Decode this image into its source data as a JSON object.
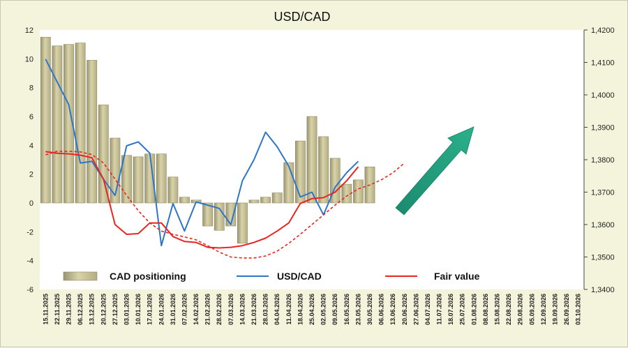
{
  "chart_data": {
    "type": "bar+line",
    "title": "USD/CAD",
    "x_labels": [
      "15.11.2025",
      "22.11.2025",
      "29.11.2025",
      "06.12.2025",
      "13.12.2025",
      "20.12.2025",
      "27.12.2025",
      "03.01.2026",
      "10.01.2026",
      "17.01.2026",
      "24.01.2026",
      "31.01.2026",
      "07.02.2026",
      "14.02.2026",
      "21.02.2026",
      "28.02.2026",
      "07.03.2026",
      "14.03.2026",
      "21.03.2026",
      "28.03.2026",
      "04.04.2026",
      "11.04.2026",
      "18.04.2026",
      "25.04.2026",
      "02.05.2026",
      "09.05.2026",
      "16.05.2026",
      "23.05.2026",
      "30.05.2026",
      "06.06.2026",
      "13.06.2026",
      "20.06.2026",
      "27.06.2026",
      "04.07.2026",
      "11.07.2026",
      "18.07.2026",
      "25.07.2026",
      "01.08.2026",
      "08.08.2026",
      "15.08.2026",
      "22.08.2026",
      "29.08.2026",
      "05.09.2026",
      "12.09.2026",
      "19.09.2026",
      "26.09.2026",
      "03.10.2026"
    ],
    "left_axis": {
      "min": -6,
      "max": 12,
      "ticks": [
        -6,
        -4,
        -2,
        0,
        2,
        4,
        6,
        8,
        10,
        12
      ]
    },
    "right_axis": {
      "min": 1.34,
      "max": 1.42,
      "ticks": [
        "1,3400",
        "1,3500",
        "1,3600",
        "1,3700",
        "1,3800",
        "1,3900",
        "1,4000",
        "1,4100",
        "1,4200"
      ]
    },
    "series": [
      {
        "name": "CAD positioning",
        "type": "bar",
        "axis": "left",
        "color": "#c8c194",
        "values": [
          11.5,
          10.9,
          11.0,
          11.1,
          9.9,
          6.8,
          4.5,
          3.3,
          3.2,
          3.4,
          3.4,
          1.8,
          0.4,
          0.2,
          -1.6,
          -1.9,
          -1.6,
          -2.8,
          0.2,
          0.4,
          0.7,
          2.8,
          4.3,
          6.0,
          4.6,
          3.1,
          1.3,
          1.6,
          2.5
        ]
      },
      {
        "name": "USD/CAD",
        "type": "line",
        "axis": "right",
        "color": "#2e75c8",
        "values": [
          1.411,
          1.404,
          1.397,
          1.379,
          1.3795,
          1.374,
          1.369,
          1.3843,
          1.3855,
          1.382,
          1.3535,
          1.3665,
          1.358,
          1.367,
          1.366,
          1.365,
          1.36,
          1.3735,
          1.38,
          1.3885,
          1.384,
          1.378,
          1.3685,
          1.37,
          1.363,
          1.3715,
          1.376,
          1.3795
        ]
      },
      {
        "name": "Fair value",
        "type": "line",
        "axis": "right",
        "color": "#e8251f",
        "values": [
          1.3825,
          1.382,
          1.3818,
          1.3814,
          1.3806,
          1.374,
          1.36,
          1.357,
          1.3572,
          1.3605,
          1.3605,
          1.3563,
          1.3548,
          1.3545,
          1.353,
          1.3528,
          1.353,
          1.3535,
          1.3545,
          1.3558,
          1.358,
          1.3605,
          1.3665,
          1.368,
          1.3683,
          1.37,
          1.3735,
          1.3778
        ]
      },
      {
        "name": "Fair value forecast",
        "type": "line",
        "axis": "right",
        "color": "#e8251f",
        "dashed": true,
        "values": [
          1.3815,
          1.3826,
          1.3826,
          1.3824,
          1.3816,
          1.379,
          1.374,
          1.369,
          1.3643,
          1.3605,
          1.358,
          1.357,
          1.3562,
          1.3553,
          1.3535,
          1.3515,
          1.35,
          1.3497,
          1.3497,
          1.3503,
          1.3518,
          1.3542,
          1.357,
          1.36,
          1.363,
          1.366,
          1.3688,
          1.371,
          1.3722,
          1.3738,
          1.376,
          1.379
        ]
      }
    ],
    "legend": {
      "placement": "bottom",
      "items": [
        {
          "label": "CAD positioning",
          "kind": "bar",
          "color": "#c8c194"
        },
        {
          "label": "USD/CAD",
          "kind": "line",
          "color": "#2e75c8"
        },
        {
          "label": "Fair value",
          "kind": "line",
          "color": "#e8251f"
        }
      ]
    },
    "annotation": {
      "kind": "arrow",
      "direction": "up-right",
      "color": "#1f9c7c"
    }
  }
}
